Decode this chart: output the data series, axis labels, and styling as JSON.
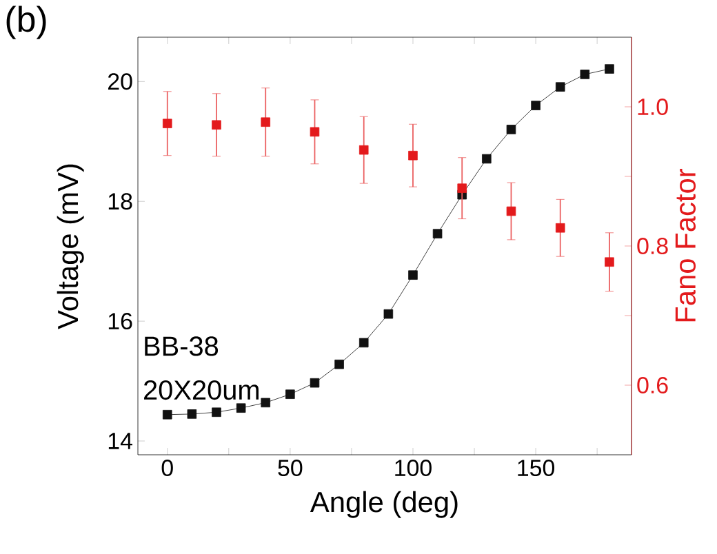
{
  "chart_data": {
    "type": "line",
    "title": "(b)",
    "xlabel": "Angle (deg)",
    "ylabel": "Voltage (mV)",
    "y2label": "Fano Factor",
    "annotations": [
      "BB-38",
      "20X20um"
    ],
    "xlim": [
      -12,
      189
    ],
    "ylim": [
      13.77,
      20.74
    ],
    "y2lim": [
      0.5,
      1.1
    ],
    "xticks": [
      0,
      {
        "value": 25,
        "label": null
      },
      50,
      {
        "value": 75,
        "label": null
      },
      100,
      {
        "value": 125,
        "label": null
      },
      150,
      {
        "value": 175,
        "label": null
      }
    ],
    "yticks": [
      14,
      16,
      18,
      20
    ],
    "y2ticks": [
      0.6,
      {
        "value": 0.7,
        "label": null
      },
      0.8,
      {
        "value": 0.9,
        "label": null
      },
      {
        "value": 1.0,
        "label": "1.0"
      }
    ],
    "marker": "square",
    "line_style": "solid",
    "grid": false,
    "series": [
      {
        "color": "#111111",
        "x": [
          0,
          10,
          20,
          30,
          40,
          50,
          60,
          70,
          80,
          90,
          100,
          110,
          120,
          130,
          140,
          150,
          160,
          170,
          180
        ],
        "values": [
          14.44,
          14.45,
          14.48,
          14.55,
          14.64,
          14.78,
          14.97,
          15.28,
          15.64,
          16.12,
          16.77,
          17.46,
          18.11,
          18.71,
          19.2,
          19.6,
          19.91,
          20.12,
          20.21
        ]
      },
      {
        "type": "scatter",
        "axis": "y2",
        "color": "#e31a1c",
        "x": [
          0,
          20,
          40,
          60,
          80,
          100,
          120,
          140,
          160,
          180
        ],
        "values": [
          0.976,
          0.974,
          0.978,
          0.964,
          0.938,
          0.93,
          0.883,
          0.85,
          0.826,
          0.777
        ],
        "errors": [
          0.046,
          0.045,
          0.049,
          0.046,
          0.048,
          0.045,
          0.044,
          0.041,
          0.041,
          0.042
        ]
      }
    ]
  }
}
